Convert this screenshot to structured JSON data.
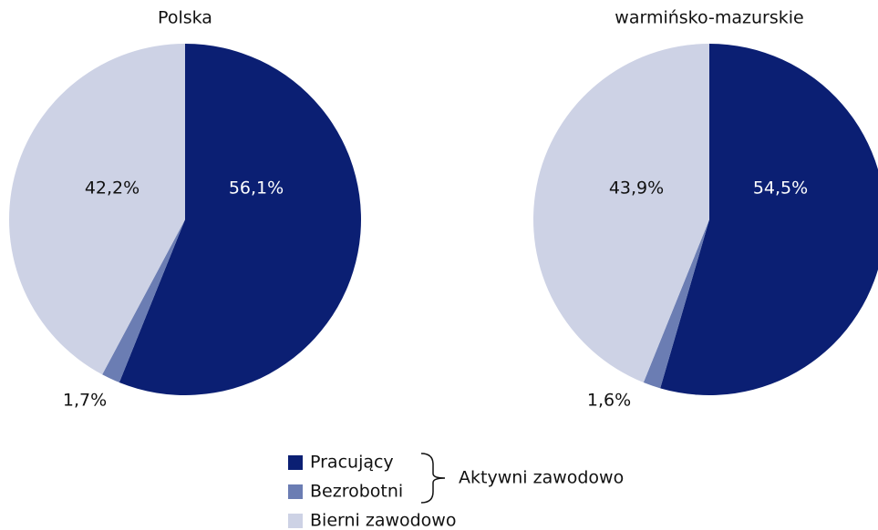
{
  "chart_data": [
    {
      "type": "pie",
      "title": "Polska",
      "categories": [
        "Pracujący",
        "Bezrobotni",
        "Bierni zawodowo"
      ],
      "values": [
        56.1,
        1.7,
        42.2
      ],
      "value_labels": [
        "56,1%",
        "1,7%",
        "42,2%"
      ],
      "colors": [
        "#0b1f73",
        "#6b7db3",
        "#cdd2e5"
      ],
      "annotation": "Aktywni zawodowo"
    },
    {
      "type": "pie",
      "title": "warmińsko-mazurskie",
      "categories": [
        "Pracujący",
        "Bezrobotni",
        "Bierni zawodowo"
      ],
      "values": [
        54.5,
        1.6,
        43.9
      ],
      "value_labels": [
        "54,5%",
        "1,6%",
        "43,9%"
      ],
      "colors": [
        "#0b1f73",
        "#6b7db3",
        "#cdd2e5"
      ]
    }
  ]
}
